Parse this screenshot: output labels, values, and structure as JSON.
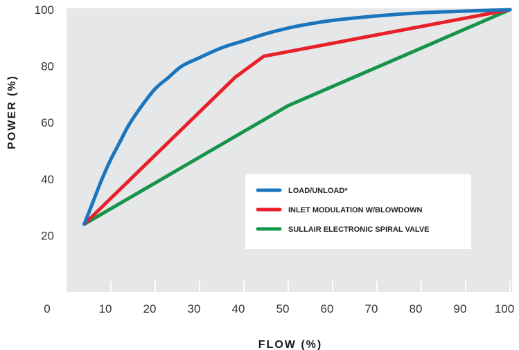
{
  "chart_data": {
    "type": "line",
    "title": "",
    "xlabel": "FLOW (%)",
    "ylabel": "POWER (%)",
    "xlim": [
      0,
      100
    ],
    "ylim": [
      0,
      100
    ],
    "x_ticks": [
      0,
      10,
      20,
      30,
      40,
      50,
      60,
      70,
      80,
      90,
      100
    ],
    "y_ticks": [
      20,
      40,
      60,
      80,
      100
    ],
    "grid": false,
    "legend_position": "center-right",
    "series": [
      {
        "name": "LOAD/UNLOAD*",
        "color": "#1b75bc",
        "x": [
          4,
          6,
          8,
          10,
          12,
          14,
          17,
          20,
          23,
          26,
          30,
          35,
          40,
          45,
          50,
          55,
          60,
          70,
          80,
          90,
          100
        ],
        "y": [
          24,
          32,
          40,
          47,
          53,
          59,
          66,
          72,
          76,
          80,
          83,
          86.5,
          89,
          91.5,
          93.5,
          95,
          96.2,
          97.8,
          98.9,
          99.5,
          100
        ]
      },
      {
        "name": "INLET MODULATION W/BLOWDOWN",
        "color": "#e8202a",
        "x": [
          4,
          38,
          44.5,
          100
        ],
        "y": [
          24,
          76,
          83.5,
          100
        ]
      },
      {
        "name": "SULLAIR ELECTRONIC SPIRAL VALVE",
        "color": "#16954a",
        "x": [
          4,
          50,
          100
        ],
        "y": [
          24,
          66,
          100
        ]
      }
    ]
  }
}
